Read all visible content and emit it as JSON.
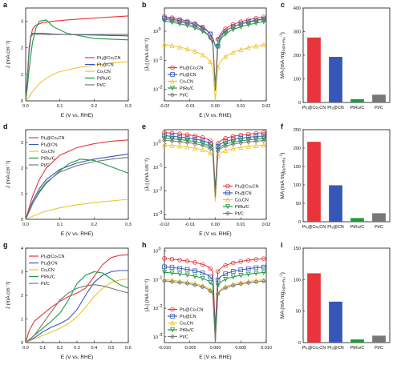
{
  "colors": {
    "pt1co1cn": "#e8343b",
    "pt1cn": "#3558b8",
    "co1cn": "#f2c330",
    "ptruc": "#1c9a3c",
    "ptc": "#777777"
  },
  "chart_data": [
    {
      "panel": "a",
      "type": "line",
      "xlabel": "E (V vs. RHE)",
      "ylabel": "J (mA cm⁻²)",
      "xlim": [
        0,
        0.3
      ],
      "ylim": [
        0,
        3.5
      ],
      "xticks": [
        "0.0",
        "0.1",
        "0.2",
        "0.3"
      ],
      "yticks": [
        "0",
        "1",
        "2",
        "3"
      ],
      "legend": "center-right",
      "series": [
        {
          "name": "Pt₁@Co₁CN",
          "color": "#e8343b",
          "x": [
            0,
            0.005,
            0.01,
            0.015,
            0.02,
            0.03,
            0.05,
            0.08,
            0.12,
            0.2,
            0.3
          ],
          "y": [
            0,
            0.8,
            1.8,
            2.4,
            2.7,
            2.85,
            2.95,
            3.0,
            3.05,
            3.12,
            3.2
          ]
        },
        {
          "name": "Pt₁@CN",
          "color": "#3558b8",
          "x": [
            0,
            0.005,
            0.01,
            0.015,
            0.02,
            0.03,
            0.05,
            0.08,
            0.12,
            0.2,
            0.3
          ],
          "y": [
            0,
            0.9,
            2.0,
            2.45,
            2.55,
            2.55,
            2.55,
            2.52,
            2.5,
            2.48,
            2.45
          ]
        },
        {
          "name": "Co₁CN",
          "color": "#f2c330",
          "x": [
            0,
            0.01,
            0.02,
            0.04,
            0.06,
            0.08,
            0.1,
            0.15,
            0.2,
            0.25,
            0.3
          ],
          "y": [
            0,
            0.15,
            0.35,
            0.65,
            0.85,
            1.0,
            1.1,
            1.25,
            1.35,
            1.42,
            1.48
          ]
        },
        {
          "name": "PtRu/C",
          "color": "#1c9a3c",
          "x": [
            0,
            0.005,
            0.01,
            0.02,
            0.03,
            0.04,
            0.06,
            0.08,
            0.12,
            0.2,
            0.3
          ],
          "y": [
            0,
            0.5,
            1.2,
            2.2,
            2.75,
            3.0,
            3.05,
            2.8,
            2.55,
            2.35,
            2.3
          ]
        },
        {
          "name": "Pt/C",
          "color": "#777777",
          "x": [
            0,
            0.005,
            0.01,
            0.015,
            0.02,
            0.03,
            0.05,
            0.1,
            0.2,
            0.3
          ],
          "y": [
            0,
            0.8,
            1.9,
            2.4,
            2.5,
            2.5,
            2.5,
            2.5,
            2.5,
            2.5
          ]
        }
      ]
    },
    {
      "panel": "b",
      "type": "line",
      "log": true,
      "xlabel": "E (V vs. RHE)",
      "ylabel": "|Jₖ| (mA cm⁻²)",
      "xlim": [
        -0.02,
        0.02
      ],
      "ylim_exp": [
        -2.4,
        0.8
      ],
      "xticks": [
        "-0.02",
        "-0.01",
        "0.00",
        "0.01",
        "0.02"
      ],
      "yticks": [
        {
          "exp": -2,
          "mant": "10",
          "sup": "-2"
        },
        {
          "exp": -1,
          "mant": "10",
          "sup": "-1"
        },
        {
          "exp": 0,
          "mant": "10",
          "sup": "0"
        }
      ],
      "legend": "bottom-left",
      "series": [
        {
          "name": "Pt₁@Co₁CN",
          "color": "#e8343b",
          "base": 3.2,
          "k": 0.6,
          "offset": 0
        },
        {
          "name": "Pt₁@CN",
          "color": "#3558b8",
          "base": 2.8,
          "k": 0.6,
          "offset": 0.0005
        },
        {
          "name": "Co₁CN",
          "color": "#f2c330",
          "base": 0.35,
          "k": 0.6,
          "offset": 0
        },
        {
          "name": "PtRu/C",
          "color": "#1c9a3c",
          "base": 2.2,
          "k": 0.6,
          "offset": 0.0003
        },
        {
          "name": "Pt/C",
          "color": "#777777",
          "base": 2.6,
          "k": 0.6,
          "offset": -0.0003
        }
      ]
    },
    {
      "panel": "c",
      "type": "bar",
      "ylabel": "MA (mA mg",
      "ylabel_sub": "Pt/Pt+Ru",
      "ylabel_sup": "-1",
      "ylim": [
        0,
        400
      ],
      "yticks": [
        "0",
        "100",
        "200",
        "300",
        "400"
      ],
      "categories": [
        "Pt₁@Co₁CN",
        "Pt₁@CN",
        "PtRu/C",
        "Pt/C"
      ],
      "values": [
        275,
        193,
        14,
        33
      ],
      "colors": [
        "#e8343b",
        "#3558b8",
        "#1c9a3c",
        "#777777"
      ]
    },
    {
      "panel": "d",
      "type": "line",
      "xlabel": "E (V vs. RHE)",
      "ylabel": "J (mA cm⁻²)",
      "xlim": [
        0,
        0.3
      ],
      "ylim": [
        0,
        3.5
      ],
      "xticks": [
        "0.0",
        "0.1",
        "0.2",
        "0.3"
      ],
      "yticks": [
        "0",
        "1",
        "2",
        "3"
      ],
      "legend": "top-left",
      "series": [
        {
          "name": "Pt₁@Co₁CN",
          "color": "#e8343b",
          "x": [
            0,
            0.01,
            0.02,
            0.04,
            0.06,
            0.1,
            0.15,
            0.2,
            0.25,
            0.3
          ],
          "y": [
            0,
            0.45,
            0.9,
            1.55,
            2.0,
            2.5,
            2.8,
            2.95,
            3.05,
            3.1
          ]
        },
        {
          "name": "Pt₁@CN",
          "color": "#3558b8",
          "x": [
            0,
            0.01,
            0.02,
            0.04,
            0.06,
            0.1,
            0.15,
            0.2,
            0.25,
            0.3
          ],
          "y": [
            0,
            0.35,
            0.7,
            1.2,
            1.55,
            1.95,
            2.2,
            2.35,
            2.45,
            2.55
          ]
        },
        {
          "name": "Co₁CN",
          "color": "#f2c330",
          "x": [
            0,
            0.02,
            0.05,
            0.1,
            0.15,
            0.2,
            0.25,
            0.3
          ],
          "y": [
            0,
            0.12,
            0.28,
            0.45,
            0.57,
            0.65,
            0.72,
            0.78
          ]
        },
        {
          "name": "PtRu/C",
          "color": "#1c9a3c",
          "x": [
            0,
            0.01,
            0.02,
            0.04,
            0.06,
            0.1,
            0.13,
            0.16,
            0.2,
            0.25,
            0.3
          ],
          "y": [
            0,
            0.3,
            0.6,
            1.05,
            1.4,
            1.9,
            2.2,
            2.35,
            2.3,
            2.05,
            1.8
          ]
        },
        {
          "name": "Pt/C",
          "color": "#777777",
          "x": [
            0,
            0.01,
            0.02,
            0.04,
            0.06,
            0.1,
            0.15,
            0.2,
            0.25,
            0.3
          ],
          "y": [
            0,
            0.3,
            0.6,
            1.1,
            1.45,
            1.85,
            2.1,
            2.25,
            2.35,
            2.42
          ]
        }
      ]
    },
    {
      "panel": "e",
      "type": "line",
      "log": true,
      "xlabel": "E (V vs. RHE)",
      "ylabel": "|Jₖ| (mA cm⁻²)",
      "xlim": [
        -0.02,
        0.02
      ],
      "ylim_exp": [
        -3.2,
        0.6
      ],
      "xticks": [
        "-0.02",
        "-0.01",
        "0.00",
        "0.01",
        "0.02"
      ],
      "yticks": [
        {
          "exp": -3,
          "mant": "10",
          "sup": "-3"
        },
        {
          "exp": -2,
          "mant": "10",
          "sup": "-2"
        },
        {
          "exp": -1,
          "mant": "10",
          "sup": "-1"
        },
        {
          "exp": 0,
          "mant": "10",
          "sup": "0"
        }
      ],
      "legend": "bottom-right",
      "series": [
        {
          "name": "Pt₁@Co₁CN",
          "color": "#e8343b",
          "base": 3.0,
          "k": 0.35,
          "offset": 0
        },
        {
          "name": "Pt₁@CN",
          "color": "#3558b8",
          "base": 2.2,
          "k": 0.35,
          "offset": 0
        },
        {
          "name": "Co₁CN",
          "color": "#f2c330",
          "base": 0.9,
          "k": 0.35,
          "offset": 0
        },
        {
          "name": "PtRu/C",
          "color": "#1c9a3c",
          "base": 1.7,
          "k": 0.35,
          "offset": 0
        },
        {
          "name": "Pt/C",
          "color": "#777777",
          "base": 1.4,
          "k": 0.35,
          "offset": 0
        }
      ]
    },
    {
      "panel": "f",
      "type": "bar",
      "ylabel": "MA (mA mg",
      "ylabel_sub": "Pt/Pt+Ru",
      "ylabel_sup": "-1",
      "ylim": [
        0,
        250
      ],
      "yticks": [
        "0",
        "50",
        "100",
        "150",
        "200",
        "250"
      ],
      "categories": [
        "Pt₁@Co₁CN",
        "Pt₁@CN",
        "PtRu/C",
        "Pt/C"
      ],
      "values": [
        217,
        99,
        10,
        23
      ],
      "colors": [
        "#e8343b",
        "#3558b8",
        "#1c9a3c",
        "#777777"
      ]
    },
    {
      "panel": "g",
      "type": "line",
      "xlabel": "E (V vs. RHE)",
      "ylabel": "J (mA cm⁻²)",
      "xlim": [
        0,
        0.6
      ],
      "ylim": [
        0,
        4
      ],
      "xticks": [
        "0.0",
        "0.1",
        "0.2",
        "0.3",
        "0.4",
        "0.5",
        "0.6"
      ],
      "yticks": [
        "0",
        "1",
        "2",
        "3",
        "4"
      ],
      "legend": "top-left",
      "series": [
        {
          "name": "Pt₁@Co₁CN",
          "color": "#e8343b",
          "x": [
            0,
            0.02,
            0.05,
            0.1,
            0.15,
            0.2,
            0.25,
            0.3,
            0.35,
            0.4,
            0.45,
            0.5,
            0.55,
            0.6
          ],
          "y": [
            0,
            0.5,
            0.9,
            1.2,
            1.5,
            1.75,
            1.95,
            2.1,
            2.3,
            2.8,
            3.3,
            3.6,
            3.7,
            3.72
          ]
        },
        {
          "name": "Pt₁@CN",
          "color": "#3558b8",
          "x": [
            0,
            0.05,
            0.1,
            0.15,
            0.2,
            0.25,
            0.3,
            0.35,
            0.4,
            0.45,
            0.5,
            0.55,
            0.6
          ],
          "y": [
            0,
            0.2,
            0.45,
            0.65,
            0.8,
            1.0,
            1.4,
            2.0,
            2.55,
            2.85,
            3.0,
            3.05,
            3.05
          ]
        },
        {
          "name": "Co₁CN",
          "color": "#f2c330",
          "x": [
            0,
            0.05,
            0.1,
            0.15,
            0.2,
            0.25,
            0.3,
            0.35,
            0.4,
            0.45,
            0.5,
            0.55,
            0.6
          ],
          "y": [
            0,
            0.15,
            0.3,
            0.45,
            0.6,
            0.8,
            1.1,
            1.5,
            1.95,
            2.3,
            2.55,
            2.65,
            2.7
          ]
        },
        {
          "name": "PtRu/C",
          "color": "#1c9a3c",
          "x": [
            0,
            0.05,
            0.1,
            0.15,
            0.2,
            0.25,
            0.3,
            0.35,
            0.4,
            0.45,
            0.5,
            0.55,
            0.6
          ],
          "y": [
            0,
            0.3,
            0.6,
            0.9,
            1.25,
            1.8,
            2.5,
            2.85,
            3.0,
            2.95,
            2.7,
            2.45,
            2.3
          ]
        },
        {
          "name": "Pt/C",
          "color": "#777777",
          "x": [
            0,
            0.05,
            0.1,
            0.15,
            0.2,
            0.25,
            0.3,
            0.35,
            0.4,
            0.45,
            0.5,
            0.55,
            0.6
          ],
          "y": [
            0,
            0.3,
            0.8,
            1.3,
            1.8,
            2.1,
            2.3,
            2.4,
            2.45,
            2.4,
            2.3,
            2.2,
            2.1
          ]
        }
      ]
    },
    {
      "panel": "h",
      "type": "line",
      "log": true,
      "xlabel": "E (V vs. RHE)",
      "ylabel": "|Jₖ| (mA cm⁻²)",
      "xlim": [
        -0.01,
        0.01
      ],
      "ylim_exp": [
        -3.2,
        0.1
      ],
      "xticks": [
        "-0.010",
        "-0.005",
        "0.000",
        "0.005",
        "0.010"
      ],
      "yticks": [
        {
          "exp": -3,
          "mant": "10",
          "sup": "-3"
        },
        {
          "exp": -2,
          "mant": "10",
          "sup": "-2"
        },
        {
          "exp": -1,
          "mant": "10",
          "sup": "-1"
        },
        {
          "exp": 0,
          "mant": "10",
          "sup": "0"
        }
      ],
      "legend": "bottom-left",
      "series": [
        {
          "name": "Pt₁@Co₁CN",
          "color": "#e8343b",
          "base": 0.55,
          "k": 0.35,
          "offset": 0
        },
        {
          "name": "Pt₁@CN",
          "color": "#3558b8",
          "base": 0.28,
          "k": 0.35,
          "offset": 0
        },
        {
          "name": "Co₁CN",
          "color": "#f2c330",
          "base": 0.1,
          "k": 0.35,
          "offset": 0
        },
        {
          "name": "PtRu/C",
          "color": "#1c9a3c",
          "base": 0.18,
          "k": 0.35,
          "offset": 0
        },
        {
          "name": "Pt/C",
          "color": "#777777",
          "base": 0.09,
          "k": 0.35,
          "offset": 0
        }
      ]
    },
    {
      "panel": "i",
      "type": "bar",
      "ylabel": "MA (mA mg",
      "ylabel_sub": "Pt/Pt+Ru",
      "ylabel_sup": "-1",
      "ylim": [
        0,
        150
      ],
      "yticks": [
        "0",
        "50",
        "100",
        "150"
      ],
      "categories": [
        "Pt₁@Co₁CN",
        "Pt₁@CN",
        "PtRu/C",
        "Pt/C"
      ],
      "values": [
        110,
        65,
        5,
        11
      ],
      "colors": [
        "#e8343b",
        "#3558b8",
        "#1c9a3c",
        "#777777"
      ]
    }
  ]
}
